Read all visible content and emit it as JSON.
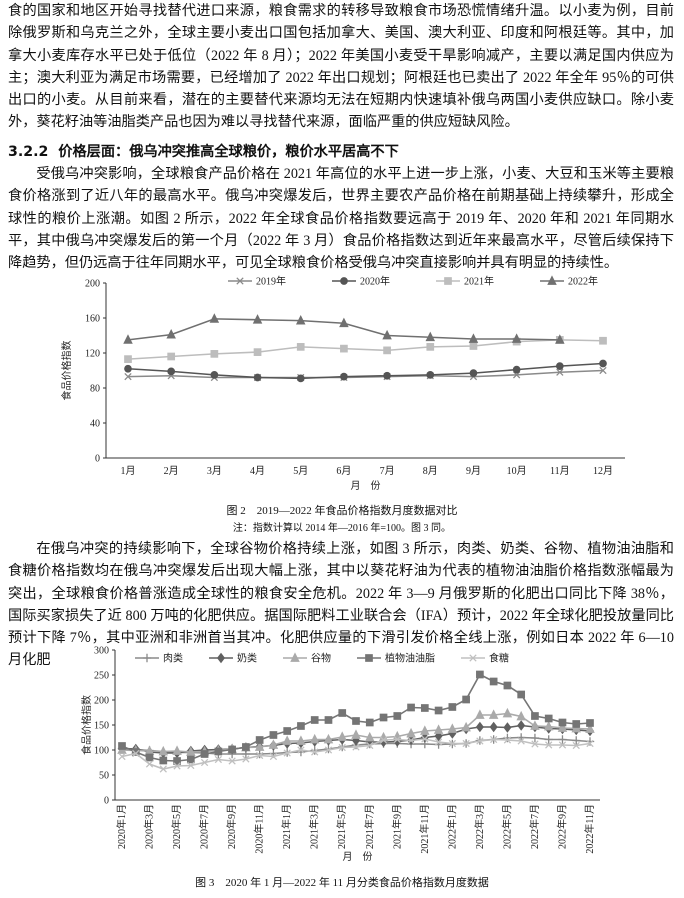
{
  "paragraphs": [
    "食的国家和地区开始寻找替代进口来源，粮食需求的转移导致粮食市场恐慌情绪升温。以小麦为例，目前除俄罗斯和乌克兰之外，全球主要小麦出口国包括加拿大、美国、澳大利亚、印度和阿根廷等。其中，加拿大小麦库存水平已处于低位（2022 年 8 月）；2022 年美国小麦受干旱影响减产，主要以满足国内供应为主；澳大利亚为满足市场需要，已经增加了 2022 年出口规划；阿根廷也已卖出了 2022 年全年 95％的可供出口的小麦。从目前来看，潜在的主要替代来源均无法在短期内快速填补俄乌两国小麦供应缺口。除小麦外，葵花籽油等油脂类产品也因为难以寻找替代来源，面临严重的供应短缺风险。",
    "受俄乌冲突影响，全球粮食产品价格在 2021 年高位的水平上进一步上涨，小麦、大豆和玉米等主要粮食价格涨到了近八年的最高水平。俄乌冲突爆发后，世界主要农产品价格在前期基础上持续攀升，形成全球性的粮价上涨潮。如图 2 所示，2022 年全球食品价格指数要远高于 2019 年、2020 年和 2021 年同期水平，其中俄乌冲突爆发后的第一个月（2022 年 3 月）食品价格指数达到近年来最高水平，尽管后续保持下降趋势，但仍远高于往年同期水平，可见全球粮食价格受俄乌冲突直接影响并具有明显的持续性。",
    "在俄乌冲突的持续影响下，全球谷物价格持续上涨，如图 3 所示，肉类、奶类、谷物、植物油油脂和食糖价格指数均在俄乌冲突爆发后出现大幅上涨，其中以葵花籽油为代表的植物油油脂价格指数涨幅最为突出，全球粮食价格普涨造成全球性的粮食安全危机。2022 年 3—9 月俄罗斯的化肥出口同比下降 38％，国际买家损失了近 800 万吨的化肥供应。据国际肥料工业联合会（IFA）预计，2022 年全球化肥投放量同比预计下降 7％，其中亚洲和非洲首当其冲。化肥供应量的下滑引发价格全线上涨，例如日本 2022 年 6—10 月化肥"
  ],
  "heading": {
    "number": "3.2.2",
    "title": "价格层面：俄乌冲突推高全球粮价，粮价水平居高不下"
  },
  "chart_data": [
    {
      "type": "line",
      "caption": "图 2　2019—2022 年食品价格指数月度数据对比",
      "note": "注：指数计算以 2014 年—2016 年=100。图 3 同。",
      "y_label": "食品价格指数",
      "x_label": "月　份",
      "categories": [
        "1月",
        "2月",
        "3月",
        "4月",
        "5月",
        "6月",
        "7月",
        "8月",
        "9月",
        "10月",
        "11月",
        "12月"
      ],
      "ylim": [
        0,
        200
      ],
      "yticks": [
        0,
        40,
        80,
        120,
        160,
        200
      ],
      "series": [
        {
          "name": "2019年",
          "color": "#8a8a8a",
          "marker": "x",
          "values": [
            93,
            94,
            92,
            92,
            92,
            92,
            93,
            94,
            93,
            95,
            98,
            100
          ]
        },
        {
          "name": "2020年",
          "color": "#555555",
          "marker": "circle",
          "values": [
            102,
            99,
            95,
            92,
            91,
            93,
            94,
            95,
            97,
            101,
            105,
            108
          ]
        },
        {
          "name": "2021年",
          "color": "#bdbdbd",
          "marker": "square",
          "values": [
            113,
            116,
            119,
            121,
            127,
            125,
            123,
            127,
            128,
            133,
            135,
            134
          ]
        },
        {
          "name": "2022年",
          "color": "#707070",
          "marker": "triangle",
          "values": [
            135,
            141,
            159,
            158,
            157,
            154,
            140,
            138,
            136,
            136,
            135,
            null
          ]
        }
      ]
    },
    {
      "type": "line",
      "caption": "图 3　2020 年 1 月—2022 年 11 月分类食品价格指数月度数据",
      "y_label": "食品价格指数",
      "x_label": "月　份",
      "categories": [
        "2020年1月",
        null,
        "2020年3月",
        null,
        "2020年5月",
        null,
        "2020年7月",
        null,
        "2020年9月",
        null,
        "2020年11月",
        null,
        "2021年1月",
        null,
        "2021年3月",
        null,
        "2021年5月",
        null,
        "2021年7月",
        null,
        "2021年9月",
        null,
        "2021年11月",
        null,
        "2022年1月",
        null,
        "2022年3月",
        null,
        "2022年5月",
        null,
        "2022年7月",
        null,
        "2022年9月",
        null,
        "2022年11月"
      ],
      "ylim": [
        0,
        300
      ],
      "yticks": [
        0,
        50,
        100,
        150,
        200,
        250,
        300
      ],
      "series": [
        {
          "name": "肉类",
          "color": "#8a8a8a",
          "marker": "plus",
          "values": [
            103,
            101,
            99,
            97,
            95,
            95,
            94,
            92,
            92,
            92,
            92,
            93,
            95,
            96,
            99,
            102,
            106,
            110,
            112,
            113,
            113,
            112,
            112,
            111,
            112,
            113,
            119,
            121,
            124,
            125,
            124,
            121,
            121,
            119,
            117
          ]
        },
        {
          "name": "奶类",
          "color": "#606060",
          "marker": "diamond",
          "values": [
            103,
            102,
            96,
            94,
            94,
            98,
            100,
            101,
            102,
            105,
            107,
            109,
            113,
            114,
            117,
            119,
            121,
            119,
            116,
            116,
            117,
            120,
            125,
            128,
            133,
            142,
            146,
            146,
            145,
            149,
            146,
            143,
            142,
            140,
            138
          ]
        },
        {
          "name": "谷物",
          "color": "#aaaaaa",
          "marker": "triangle",
          "values": [
            100,
            99,
            98,
            97,
            98,
            96,
            97,
            99,
            102,
            105,
            106,
            110,
            118,
            118,
            121,
            121,
            126,
            130,
            125,
            125,
            127,
            133,
            138,
            140,
            142,
            145,
            170,
            170,
            173,
            167,
            148,
            147,
            144,
            143,
            142
          ]
        },
        {
          "name": "植物油油脂",
          "color": "#757575",
          "marker": "square",
          "values": [
            108,
            96,
            85,
            79,
            78,
            81,
            92,
            97,
            101,
            106,
            120,
            130,
            138,
            148,
            160,
            160,
            174,
            158,
            155,
            165,
            168,
            185,
            184,
            179,
            186,
            201,
            251,
            237,
            229,
            211,
            168,
            163,
            155,
            152,
            154
          ]
        },
        {
          "name": "食糖",
          "color": "#c0c0c0",
          "marker": "x",
          "values": [
            87,
            93,
            72,
            62,
            68,
            69,
            75,
            81,
            78,
            82,
            89,
            87,
            94,
            100,
            96,
            100,
            105,
            106,
            109,
            120,
            121,
            119,
            122,
            116,
            113,
            113,
            118,
            121,
            120,
            118,
            112,
            110,
            110,
            109,
            113
          ]
        }
      ]
    }
  ]
}
